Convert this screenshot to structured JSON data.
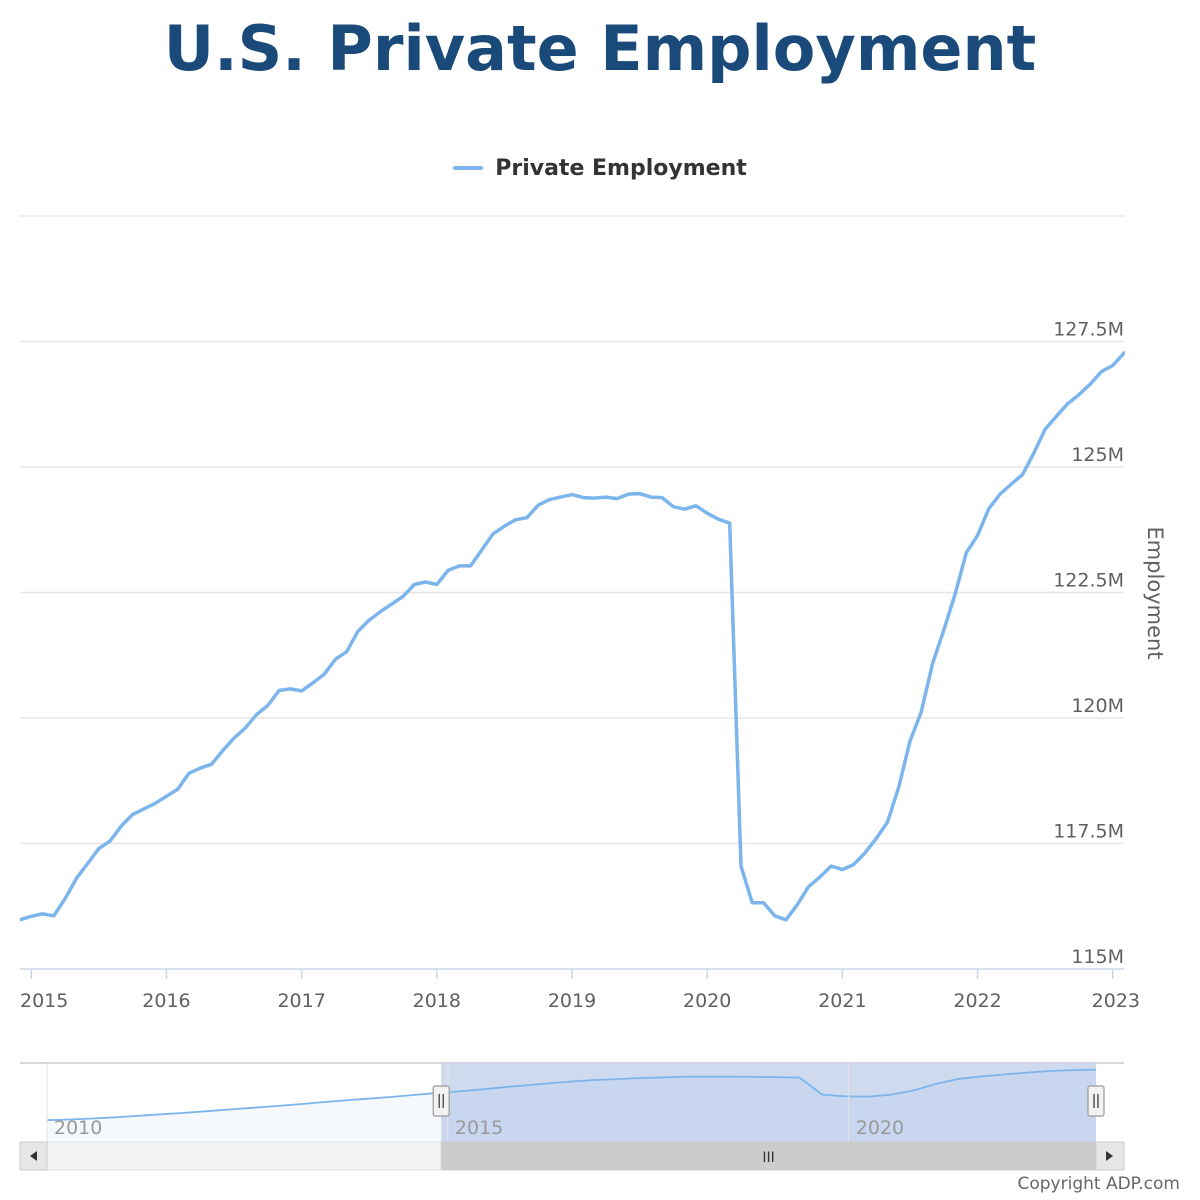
{
  "title": "U.S. Private Employment",
  "copyright": "Copyright ADP.com",
  "colors": {
    "title": "#1a4a7a",
    "series": "#7cb5ec",
    "grid": "#e6e6e6",
    "navigator_mask": "#c7d3ec"
  },
  "chart_data": {
    "type": "line",
    "series": [
      {
        "name": "Private Employment",
        "x": [
          "2014-12",
          "2015-01",
          "2015-02",
          "2015-03",
          "2015-04",
          "2015-05",
          "2015-06",
          "2015-07",
          "2015-08",
          "2015-09",
          "2015-10",
          "2015-11",
          "2015-12",
          "2016-01",
          "2016-02",
          "2016-03",
          "2016-04",
          "2016-05",
          "2016-06",
          "2016-07",
          "2016-08",
          "2016-09",
          "2016-10",
          "2016-11",
          "2016-12",
          "2017-01",
          "2017-02",
          "2017-03",
          "2017-04",
          "2017-05",
          "2017-06",
          "2017-07",
          "2017-08",
          "2017-09",
          "2017-10",
          "2017-11",
          "2017-12",
          "2018-01",
          "2018-02",
          "2018-03",
          "2018-04",
          "2018-05",
          "2018-06",
          "2018-07",
          "2018-08",
          "2018-09",
          "2018-10",
          "2018-11",
          "2018-12",
          "2019-01",
          "2019-02",
          "2019-03",
          "2019-04",
          "2019-05",
          "2019-06",
          "2019-07",
          "2019-08",
          "2019-09",
          "2019-10",
          "2019-11",
          "2019-12",
          "2020-01",
          "2020-02",
          "2020-03",
          "2020-04",
          "2020-05",
          "2020-06",
          "2020-07",
          "2020-08",
          "2020-09",
          "2020-10",
          "2020-11",
          "2020-12",
          "2021-01",
          "2021-02",
          "2021-03",
          "2021-04",
          "2021-05",
          "2021-06",
          "2021-07",
          "2021-08",
          "2021-09",
          "2021-10",
          "2021-11",
          "2021-12",
          "2022-01",
          "2022-02",
          "2022-03",
          "2022-04",
          "2022-05",
          "2022-06",
          "2022-07",
          "2022-08",
          "2022-09",
          "2022-10",
          "2022-11",
          "2022-12",
          "2023-01",
          "2023-02"
        ],
        "values": [
          115.98,
          116.05,
          116.1,
          116.06,
          116.4,
          116.8,
          117.1,
          117.4,
          117.55,
          117.85,
          118.08,
          118.19,
          118.3,
          118.44,
          118.58,
          118.9,
          119.0,
          119.08,
          119.35,
          119.6,
          119.8,
          120.07,
          120.25,
          120.55,
          120.58,
          120.54,
          120.7,
          120.87,
          121.17,
          121.32,
          121.73,
          121.95,
          122.12,
          122.27,
          122.42,
          122.66,
          122.71,
          122.66,
          122.94,
          123.03,
          123.03,
          123.35,
          123.67,
          123.82,
          123.95,
          123.99,
          124.24,
          124.35,
          124.4,
          124.45,
          124.39,
          124.38,
          124.4,
          124.37,
          124.46,
          124.47,
          124.4,
          124.39,
          124.21,
          124.16,
          124.23,
          124.08,
          123.96,
          123.88,
          117.05,
          116.32,
          116.32,
          116.06,
          115.98,
          116.28,
          116.64,
          116.83,
          117.05,
          116.98,
          117.08,
          117.31,
          117.6,
          117.92,
          118.62,
          119.54,
          120.12,
          121.08,
          121.75,
          122.46,
          123.29,
          123.64,
          124.17,
          124.46,
          124.66,
          124.85,
          125.28,
          125.75,
          126.01,
          126.26,
          126.44,
          126.65,
          126.9,
          127.02,
          127.27
        ]
      }
    ],
    "ylim": [
      115,
      130
    ],
    "yticks": [
      "115M",
      "117.5M",
      "120M",
      "122.5M",
      "125M",
      "127.5M"
    ],
    "ytick_values": [
      115,
      117.5,
      120,
      122.5,
      125,
      127.5
    ],
    "ylabel": "Employment",
    "xlim": [
      "2014-12",
      "2023-02"
    ],
    "xticks": [
      "2015",
      "2016",
      "2017",
      "2018",
      "2019",
      "2020",
      "2021",
      "2022",
      "2023"
    ],
    "grid": true,
    "legend": "top-center",
    "navigator": {
      "labels": [
        "2010",
        "2015",
        "2020"
      ],
      "range": [
        "2010-01",
        "2023-02"
      ],
      "selected": [
        "2014-12",
        "2023-02"
      ],
      "scroll_label": "III",
      "series_values": [
        106.5,
        106.8,
        107.2,
        107.7,
        108.3,
        108.9,
        109.5,
        110.2,
        110.9,
        111.6,
        112.3,
        113.0,
        113.8,
        114.6,
        115.3,
        116.0,
        116.8,
        117.6,
        118.3,
        119.1,
        120.0,
        120.8,
        121.6,
        122.4,
        123.0,
        123.4,
        123.8,
        124.1,
        124.4,
        124.4,
        124.4,
        124.3,
        124.2,
        124.0,
        117.0,
        116.3,
        116.2,
        117.0,
        118.7,
        121.5,
        123.5,
        124.5,
        125.3,
        126.1,
        126.7,
        127.1,
        127.3
      ]
    }
  }
}
